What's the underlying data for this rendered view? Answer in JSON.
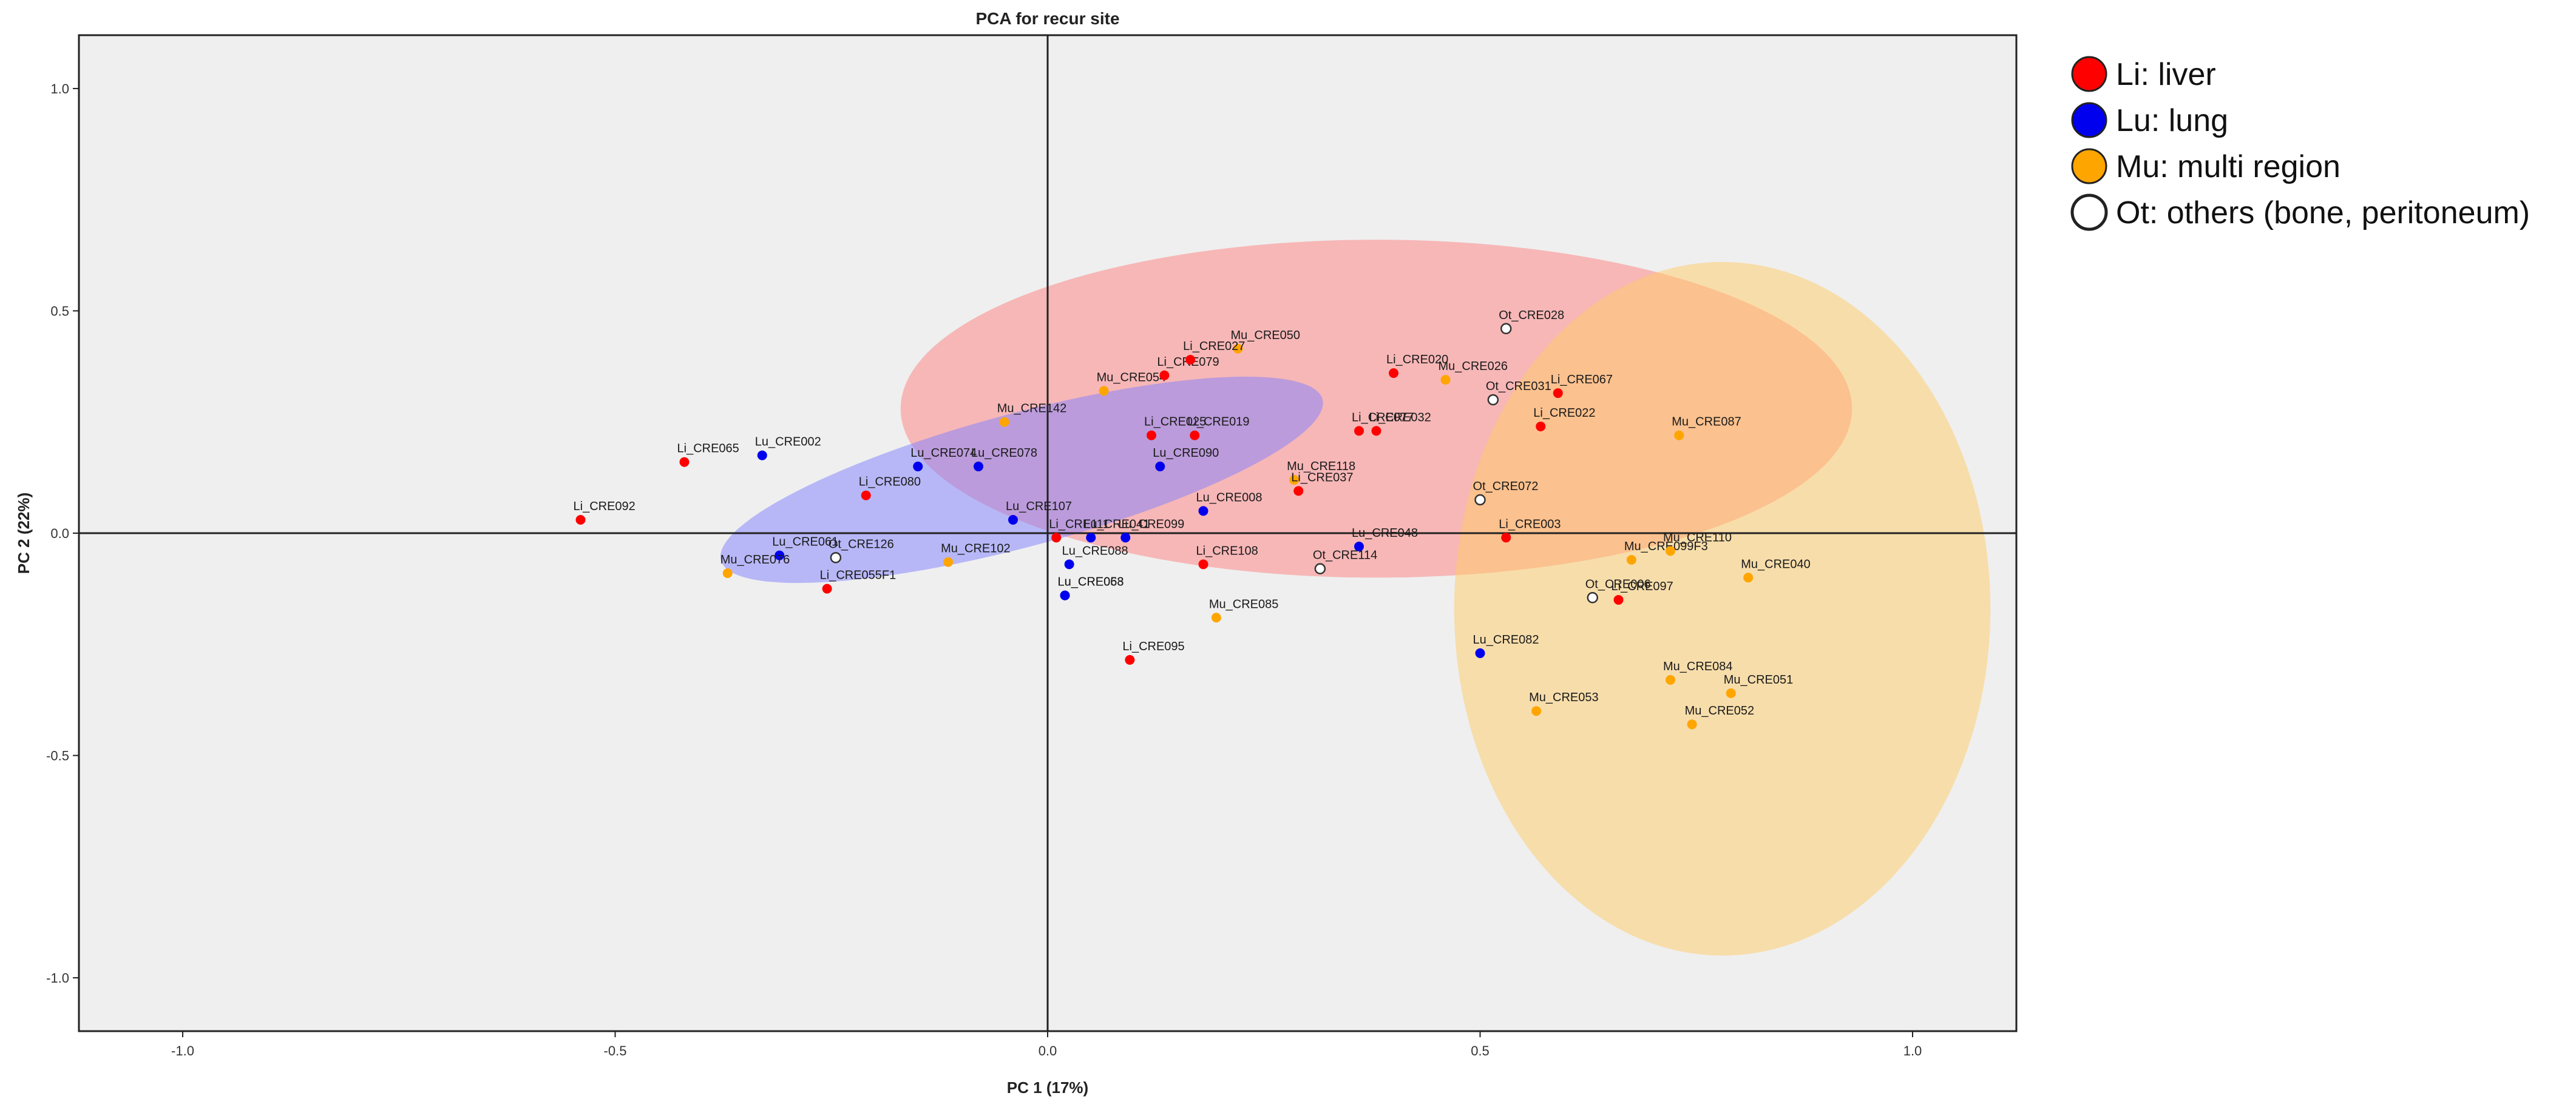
{
  "chart_data": {
    "type": "scatter",
    "title": "PCA for recur site",
    "xlabel": "PC 1 (17%)",
    "ylabel": "PC 2 (22%)",
    "xlim": [
      -1.12,
      1.12
    ],
    "ylim": [
      -1.12,
      1.12
    ],
    "x_ticks": [
      -1.0,
      -0.5,
      0.0,
      0.5,
      1.0
    ],
    "x_tick_labels": [
      "-1.0",
      "-0.5",
      "0.0",
      "0.5",
      "1.0"
    ],
    "y_ticks": [
      1.0,
      0.5,
      0.0,
      -0.5,
      -1.0
    ],
    "y_tick_labels": [
      "1.0",
      "0.5",
      "0.0",
      "-0.5",
      "-1.0"
    ],
    "grid": false,
    "reference_lines": {
      "x": 0,
      "y": 0
    },
    "legend_position": "right",
    "colors": {
      "Li": "#ff0000",
      "Lu": "#0000ee",
      "Mu": "#ffa500",
      "Ot": "#ffffff",
      "plot_bg": "#efefef"
    },
    "legend": [
      {
        "key": "Li",
        "label": "Li: liver"
      },
      {
        "key": "Lu",
        "label": "Lu: lung"
      },
      {
        "key": "Mu",
        "label": "Mu: multi region"
      },
      {
        "key": "Ot",
        "label": "Ot: others (bone, peritoneum)"
      }
    ],
    "ellipses": [
      {
        "group": "Li",
        "color": "#ff8080",
        "cx": 0.38,
        "cy": 0.28,
        "rx": 0.55,
        "ry": 0.38,
        "angle": 0
      },
      {
        "group": "Lu",
        "color": "#8080ff",
        "cx": -0.03,
        "cy": 0.12,
        "rx": 0.36,
        "ry": 0.15,
        "angle": -15
      },
      {
        "group": "Mu",
        "color": "#ffcc66",
        "cx": 0.78,
        "cy": -0.17,
        "rx": 0.31,
        "ry": 0.78,
        "angle": 0
      }
    ],
    "points": [
      {
        "label": "Li_CRE092",
        "group": "Li",
        "x": -0.54,
        "y": 0.03
      },
      {
        "label": "Li_CRE065",
        "group": "Li",
        "x": -0.42,
        "y": 0.16
      },
      {
        "label": "Lu_CRE002",
        "group": "Lu",
        "x": -0.33,
        "y": 0.175
      },
      {
        "label": "Lu_CRE074",
        "group": "Lu",
        "x": -0.15,
        "y": 0.15
      },
      {
        "label": "Lu_CRE078",
        "group": "Lu",
        "x": -0.08,
        "y": 0.15
      },
      {
        "label": "Li_CRE080",
        "group": "Li",
        "x": -0.21,
        "y": 0.085
      },
      {
        "label": "Mu_CRE142",
        "group": "Mu",
        "x": -0.05,
        "y": 0.25
      },
      {
        "label": "Lu_CRE107",
        "group": "Lu",
        "x": -0.04,
        "y": 0.03
      },
      {
        "label": "Li_CRE111",
        "group": "Li",
        "x": 0.01,
        "y": -0.01
      },
      {
        "label": "Lu_CRE041",
        "group": "Lu",
        "x": 0.05,
        "y": -0.01
      },
      {
        "label": "Lu_CRE088",
        "group": "Lu",
        "x": 0.025,
        "y": -0.07
      },
      {
        "label": "Lu_CRE063",
        "group": "Lu",
        "x": 0.02,
        "y": -0.14
      },
      {
        "label": "Lu_CRE058",
        "group": "Lu",
        "x": 0.02,
        "y": -0.14
      },
      {
        "label": "Lu_CRE061",
        "group": "Lu",
        "x": -0.31,
        "y": -0.05
      },
      {
        "label": "Mu_CRE076",
        "group": "Mu",
        "x": -0.37,
        "y": -0.09
      },
      {
        "label": "Ot_CRE126",
        "group": "Ot",
        "x": -0.245,
        "y": -0.055
      },
      {
        "label": "Li_CRE055F1",
        "group": "Li",
        "x": -0.255,
        "y": -0.125
      },
      {
        "label": "Mu_CRE102",
        "group": "Mu",
        "x": -0.115,
        "y": -0.065
      },
      {
        "label": "Mu_CRE054",
        "group": "Mu",
        "x": 0.065,
        "y": 0.32
      },
      {
        "label": "Mu_CRE050",
        "group": "Mu",
        "x": 0.22,
        "y": 0.415
      },
      {
        "label": "Li_CRE079",
        "group": "Li",
        "x": 0.135,
        "y": 0.355
      },
      {
        "label": "Li_CRE027",
        "group": "Li",
        "x": 0.165,
        "y": 0.39
      },
      {
        "label": "Li_CRE019",
        "group": "Li",
        "x": 0.17,
        "y": 0.22
      },
      {
        "label": "Li_CRE025",
        "group": "Li",
        "x": 0.12,
        "y": 0.22
      },
      {
        "label": "Lu_CRE090",
        "group": "Lu",
        "x": 0.13,
        "y": 0.15
      },
      {
        "label": "Lu_CRE008",
        "group": "Lu",
        "x": 0.18,
        "y": 0.05
      },
      {
        "label": "Lu_CRE099",
        "group": "Lu",
        "x": 0.09,
        "y": -0.01
      },
      {
        "label": "Li_CRE108",
        "group": "Li",
        "x": 0.18,
        "y": -0.07
      },
      {
        "label": "Mu_CRE085",
        "group": "Mu",
        "x": 0.195,
        "y": -0.19
      },
      {
        "label": "Li_CRE095",
        "group": "Li",
        "x": 0.095,
        "y": -0.285
      },
      {
        "label": "Mu_CRE118",
        "group": "Mu",
        "x": 0.285,
        "y": 0.12
      },
      {
        "label": "Li_CRE037",
        "group": "Li",
        "x": 0.29,
        "y": 0.095
      },
      {
        "label": "Li_CRE077",
        "group": "Li",
        "x": 0.36,
        "y": 0.23
      },
      {
        "label": "Li_CRE020",
        "group": "Li",
        "x": 0.4,
        "y": 0.36
      },
      {
        "label": "Li_CRE032",
        "group": "Li",
        "x": 0.38,
        "y": 0.23
      },
      {
        "label": "Mu_CRE026",
        "group": "Mu",
        "x": 0.46,
        "y": 0.345
      },
      {
        "label": "Ot_CRE031",
        "group": "Ot",
        "x": 0.515,
        "y": 0.3
      },
      {
        "label": "Ot_CRE028",
        "group": "Ot",
        "x": 0.53,
        "y": 0.46
      },
      {
        "label": "Li_CRE067",
        "group": "Li",
        "x": 0.59,
        "y": 0.315
      },
      {
        "label": "Li_CRE022",
        "group": "Li",
        "x": 0.57,
        "y": 0.24
      },
      {
        "label": "Ot_CRE072",
        "group": "Ot",
        "x": 0.5,
        "y": 0.075
      },
      {
        "label": "Lu_CRE048",
        "group": "Lu",
        "x": 0.36,
        "y": -0.03
      },
      {
        "label": "Ot_CRE114",
        "group": "Ot",
        "x": 0.315,
        "y": -0.08
      },
      {
        "label": "Li_CRE003",
        "group": "Li",
        "x": 0.53,
        "y": -0.01
      },
      {
        "label": "Mu_CRE099F3",
        "group": "Mu",
        "x": 0.675,
        "y": -0.06
      },
      {
        "label": "Ot_CRE006",
        "group": "Ot",
        "x": 0.63,
        "y": -0.145
      },
      {
        "label": "Li_CRE097",
        "group": "Li",
        "x": 0.66,
        "y": -0.15
      },
      {
        "label": "Lu_CRE082",
        "group": "Lu",
        "x": 0.5,
        "y": -0.27
      },
      {
        "label": "Mu_CRE053",
        "group": "Mu",
        "x": 0.565,
        "y": -0.4
      },
      {
        "label": "Mu_CRE087",
        "group": "Mu",
        "x": 0.73,
        "y": 0.22
      },
      {
        "label": "Mu_CRE110",
        "group": "Mu",
        "x": 0.72,
        "y": -0.04
      },
      {
        "label": "Mu_CRE040",
        "group": "Mu",
        "x": 0.81,
        "y": -0.1
      },
      {
        "label": "Mu_CRE084",
        "group": "Mu",
        "x": 0.72,
        "y": -0.33
      },
      {
        "label": "Mu_CRE051",
        "group": "Mu",
        "x": 0.79,
        "y": -0.36
      },
      {
        "label": "Mu_CRE052",
        "group": "Mu",
        "x": 0.745,
        "y": -0.43
      }
    ]
  }
}
